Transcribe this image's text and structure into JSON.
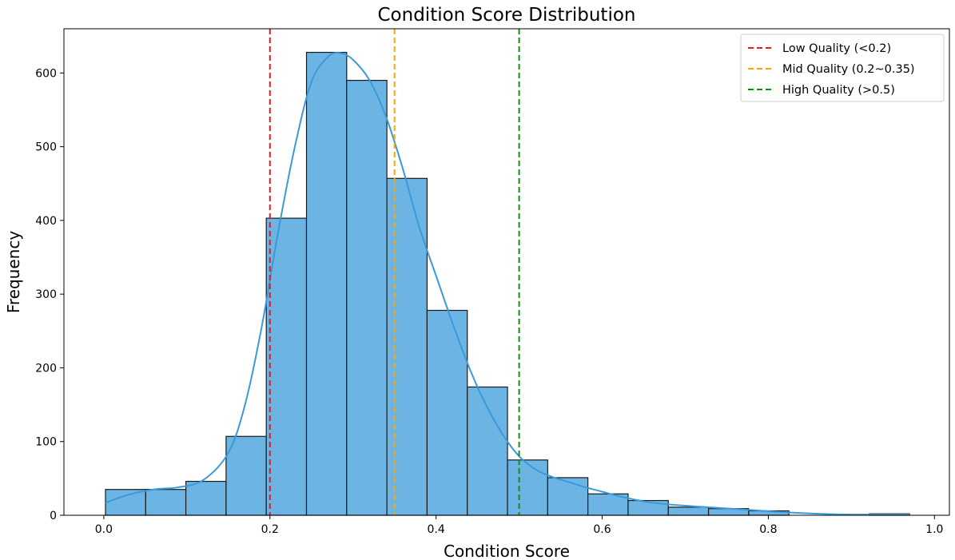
{
  "chart_data": {
    "type": "bar",
    "title": "Condition Score Distribution",
    "xlabel": "Condition Score",
    "ylabel": "Frequency",
    "xlim": [
      -0.048,
      1.018
    ],
    "ylim": [
      0,
      660
    ],
    "x_ticks": [
      0.0,
      0.2,
      0.4,
      0.6,
      0.8,
      1.0
    ],
    "x_tick_labels": [
      "0.0",
      "0.2",
      "0.4",
      "0.6",
      "0.8",
      "1.0"
    ],
    "y_ticks": [
      0,
      100,
      200,
      300,
      400,
      500,
      600
    ],
    "y_tick_labels": [
      "0",
      "100",
      "200",
      "300",
      "400",
      "500",
      "600"
    ],
    "grid": false,
    "legend_position": "top-right",
    "bar_color": "#6cb4e4",
    "bar_edge_color": "#1a1a1a",
    "bins": [
      {
        "x0": 0.002,
        "x1": 0.0504,
        "value": 35
      },
      {
        "x0": 0.0504,
        "x1": 0.0988,
        "value": 35
      },
      {
        "x0": 0.0988,
        "x1": 0.1472,
        "value": 46
      },
      {
        "x0": 0.1472,
        "x1": 0.1956,
        "value": 107
      },
      {
        "x0": 0.1956,
        "x1": 0.244,
        "value": 403
      },
      {
        "x0": 0.244,
        "x1": 0.2924,
        "value": 628
      },
      {
        "x0": 0.2924,
        "x1": 0.3408,
        "value": 590
      },
      {
        "x0": 0.3408,
        "x1": 0.3892,
        "value": 457
      },
      {
        "x0": 0.3892,
        "x1": 0.4376,
        "value": 278
      },
      {
        "x0": 0.4376,
        "x1": 0.486,
        "value": 174
      },
      {
        "x0": 0.486,
        "x1": 0.5344,
        "value": 75
      },
      {
        "x0": 0.5344,
        "x1": 0.5828,
        "value": 51
      },
      {
        "x0": 0.5828,
        "x1": 0.6312,
        "value": 29
      },
      {
        "x0": 0.6312,
        "x1": 0.6796,
        "value": 20
      },
      {
        "x0": 0.6796,
        "x1": 0.728,
        "value": 11
      },
      {
        "x0": 0.728,
        "x1": 0.7764,
        "value": 9
      },
      {
        "x0": 0.7764,
        "x1": 0.8248,
        "value": 6
      },
      {
        "x0": 0.8248,
        "x1": 0.8732,
        "value": 0
      },
      {
        "x0": 0.8732,
        "x1": 0.9216,
        "value": 0
      },
      {
        "x0": 0.9216,
        "x1": 0.97,
        "value": 2
      }
    ],
    "kde": {
      "color": "#3a9ad9",
      "x": [
        0.002,
        0.03,
        0.06,
        0.09,
        0.12,
        0.15,
        0.17,
        0.19,
        0.21,
        0.23,
        0.25,
        0.27,
        0.285,
        0.3,
        0.32,
        0.34,
        0.36,
        0.38,
        0.4,
        0.42,
        0.44,
        0.46,
        0.48,
        0.5,
        0.52,
        0.54,
        0.56,
        0.58,
        0.6,
        0.62,
        0.64,
        0.66,
        0.7,
        0.74,
        0.78,
        0.82,
        0.86,
        0.9,
        0.94,
        0.97
      ],
      "y": [
        17,
        28,
        35,
        38,
        48,
        85,
        150,
        255,
        385,
        500,
        588,
        622,
        627,
        618,
        590,
        540,
        470,
        390,
        325,
        260,
        200,
        150,
        110,
        80,
        62,
        52,
        45,
        38,
        32,
        26,
        21,
        17,
        13,
        10,
        7,
        4,
        2,
        1,
        1,
        1
      ]
    },
    "reference_lines": [
      {
        "x": 0.2,
        "color": "#e41a1c",
        "label": "Low Quality (<0.2)"
      },
      {
        "x": 0.35,
        "color": "#ffa500",
        "label": "Mid Quality (0.2~0.35)"
      },
      {
        "x": 0.5,
        "color": "#109010",
        "label": "High Quality (>0.5)"
      }
    ]
  }
}
